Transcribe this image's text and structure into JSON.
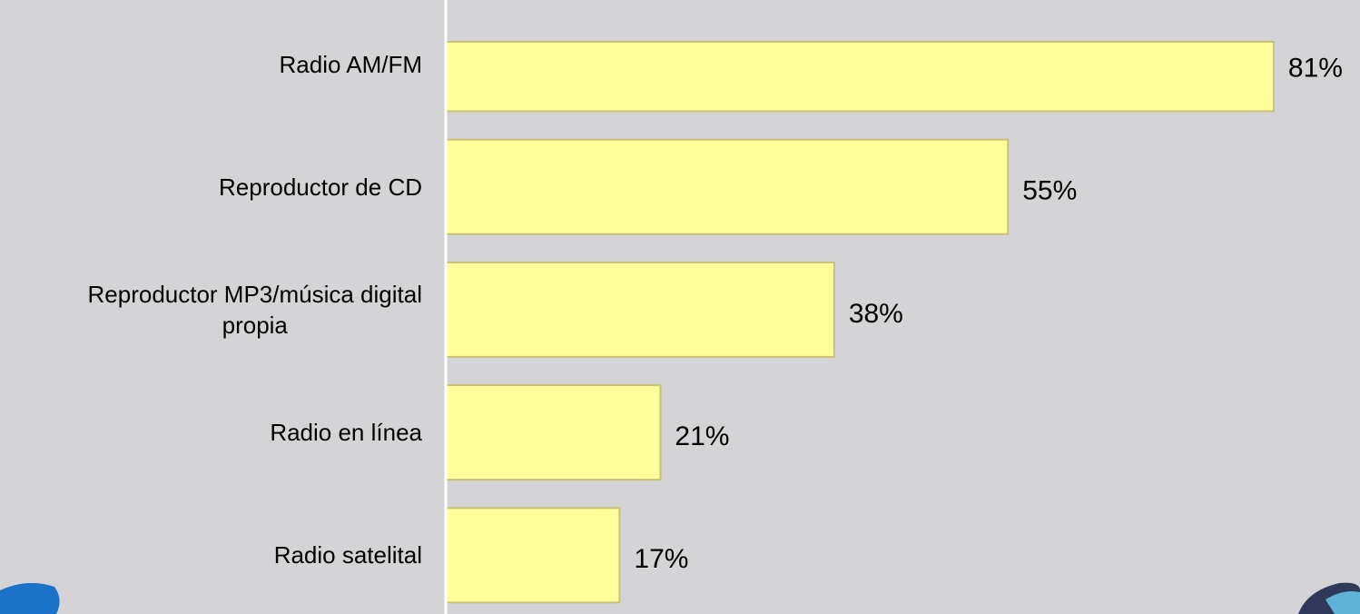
{
  "chart_data": {
    "type": "bar",
    "orientation": "horizontal",
    "categories": [
      "Radio AM/FM",
      "Reproductor de CD",
      "Reproductor MP3/música digital\npropia",
      "Radio en línea",
      "Radio satelital"
    ],
    "values": [
      81,
      55,
      38,
      21,
      17
    ],
    "value_labels": [
      "81%",
      "55%",
      "38%",
      "21%",
      "17%"
    ],
    "color": "#ffff99",
    "xlim": [
      0,
      89
    ]
  }
}
